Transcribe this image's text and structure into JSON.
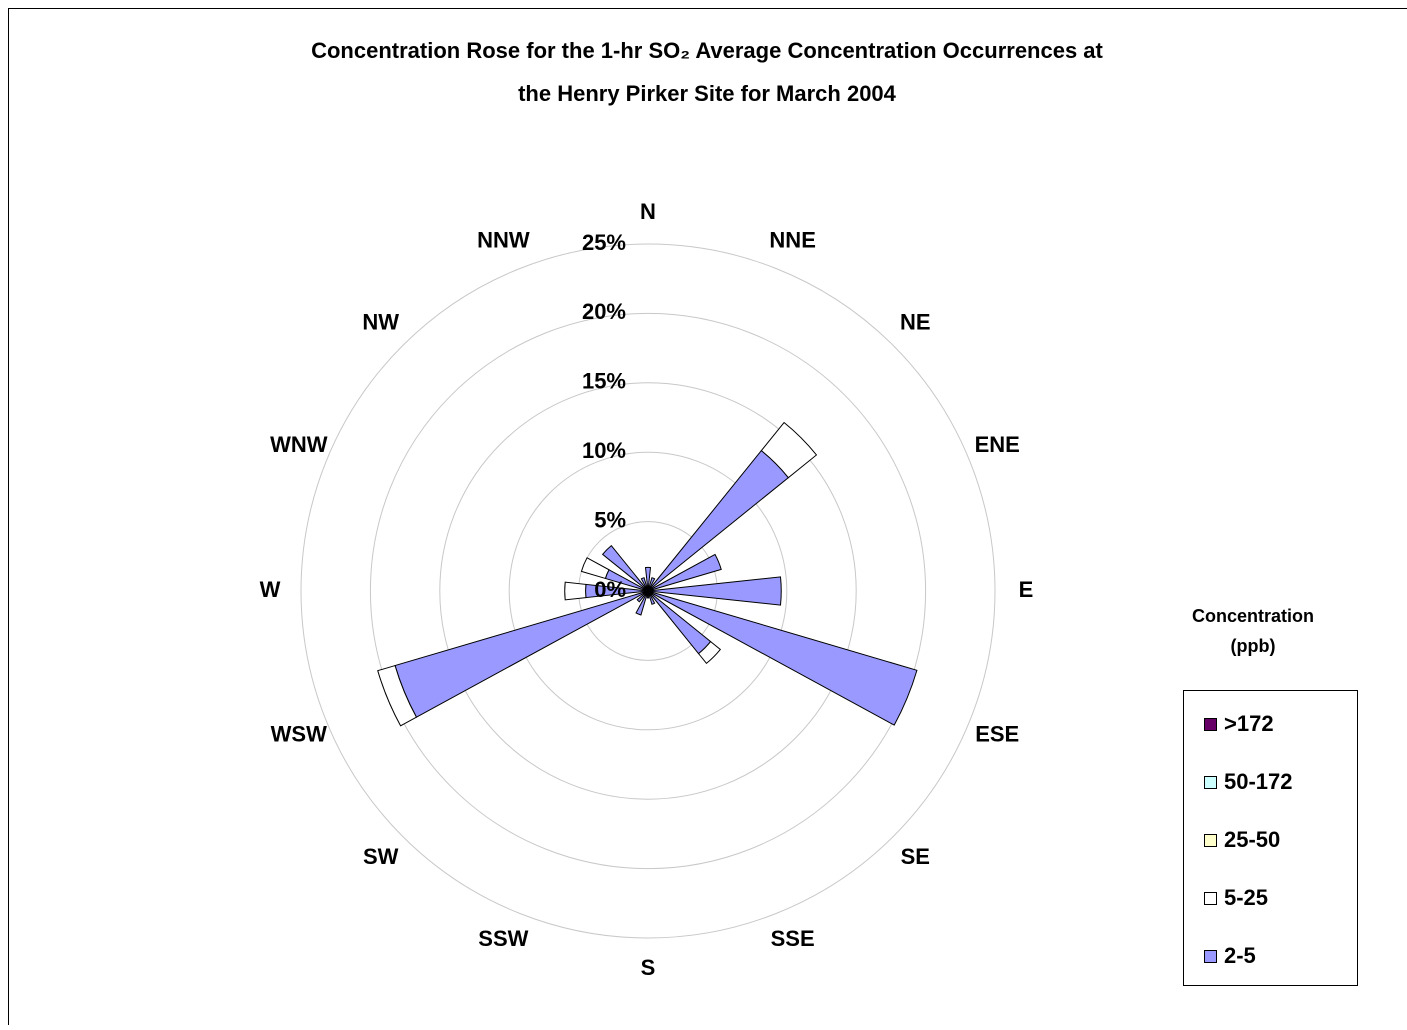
{
  "chart_data": {
    "type": "rose",
    "title": [
      "Concentration Rose for the 1-hr SO₂ Average Concentration Occurrences at",
      "the Henry Pirker Site for March 2004"
    ],
    "categories": [
      "N",
      "NNE",
      "NE",
      "ENE",
      "E",
      "ESE",
      "SE",
      "SSE",
      "S",
      "SSW",
      "SW",
      "WSW",
      "W",
      "WNW",
      "NW",
      "NNW"
    ],
    "series": [
      {
        "name": "2-5",
        "color": "#9999ff",
        "values": [
          1.7,
          1,
          13,
          5.5,
          9.6,
          20.2,
          5.8,
          1,
          0.5,
          1.8,
          1,
          19,
          4.5,
          3.2,
          4.2,
          1
        ]
      },
      {
        "name": "5-25",
        "color": "#ffffff",
        "values": [
          0,
          0,
          2.6,
          0,
          0,
          0,
          0.9,
          0,
          0,
          0,
          0,
          1.3,
          1.5,
          1.8,
          0,
          0
        ]
      },
      {
        "name": "25-50",
        "color": "#ffffcc",
        "values": [
          0,
          0,
          0,
          0,
          0,
          0,
          0,
          0,
          0,
          0,
          0,
          0,
          0,
          0,
          0,
          0
        ]
      },
      {
        "name": "50-172",
        "color": "#ccffff",
        "values": [
          0,
          0,
          0,
          0,
          0,
          0,
          0,
          0,
          0,
          0,
          0,
          0,
          0,
          0,
          0,
          0
        ]
      },
      {
        "name": ">172",
        "color": "#660066",
        "values": [
          0,
          0,
          0,
          0,
          0,
          0,
          0,
          0,
          0,
          0,
          0,
          0,
          0,
          0,
          0,
          0
        ]
      }
    ],
    "rlim": [
      0,
      25
    ],
    "rticks": [
      {
        "value": 0,
        "label": "0%"
      },
      {
        "value": 5,
        "label": "5%"
      },
      {
        "value": 10,
        "label": "10%"
      },
      {
        "value": 15,
        "label": "15%"
      },
      {
        "value": 20,
        "label": "20%"
      },
      {
        "value": 25,
        "label": "25%"
      }
    ],
    "grid": true,
    "legend_title": [
      "Concentration",
      "(ppb)"
    ],
    "legend_position": "right"
  }
}
